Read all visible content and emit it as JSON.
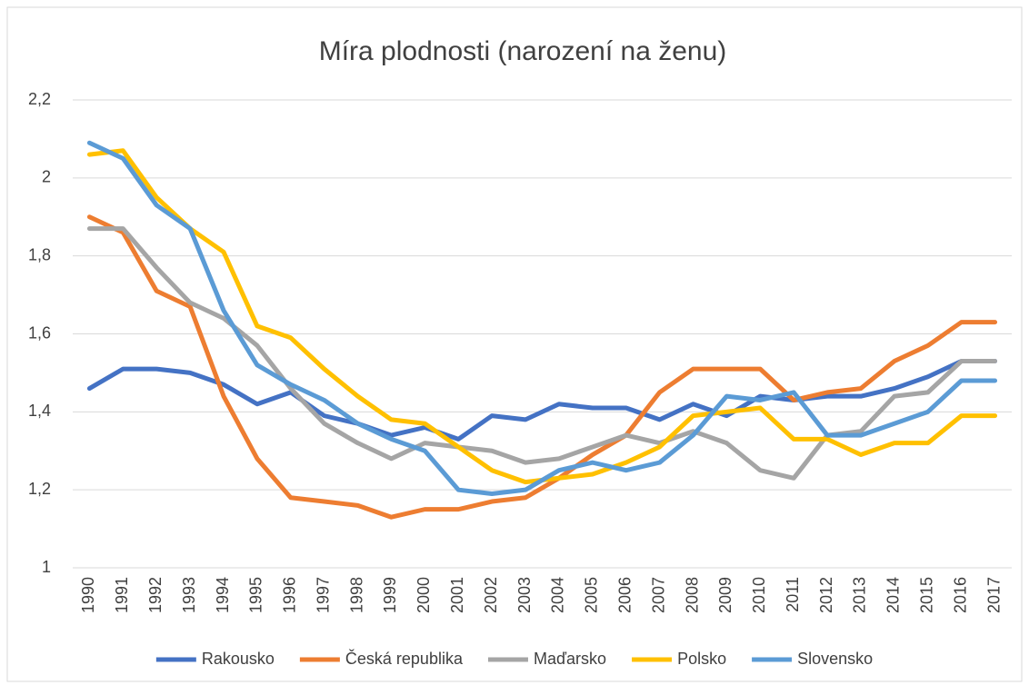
{
  "chart_data": {
    "type": "line",
    "title": "Míra plodnosti (narození na ženu)",
    "categories": [
      "1990",
      "1991",
      "1992",
      "1993",
      "1994",
      "1995",
      "1996",
      "1997",
      "1998",
      "1999",
      "2000",
      "2001",
      "2002",
      "2003",
      "2004",
      "2005",
      "2006",
      "2007",
      "2008",
      "2009",
      "2010",
      "2011",
      "2012",
      "2013",
      "2014",
      "2015",
      "2016",
      "2017"
    ],
    "series": [
      {
        "name": "Rakousko",
        "color": "#4472c4",
        "values": [
          1.46,
          1.51,
          1.51,
          1.5,
          1.47,
          1.42,
          1.45,
          1.39,
          1.37,
          1.34,
          1.36,
          1.33,
          1.39,
          1.38,
          1.42,
          1.41,
          1.41,
          1.38,
          1.42,
          1.39,
          1.44,
          1.43,
          1.44,
          1.44,
          1.46,
          1.49,
          1.53,
          1.53
        ]
      },
      {
        "name": "Česká republika",
        "color": "#ed7d31",
        "values": [
          1.9,
          1.86,
          1.71,
          1.67,
          1.44,
          1.28,
          1.18,
          1.17,
          1.16,
          1.13,
          1.15,
          1.15,
          1.17,
          1.18,
          1.23,
          1.29,
          1.34,
          1.45,
          1.51,
          1.51,
          1.51,
          1.43,
          1.45,
          1.46,
          1.53,
          1.57,
          1.63,
          1.63
        ]
      },
      {
        "name": "Maďarsko",
        "color": "#a5a5a5",
        "values": [
          1.87,
          1.87,
          1.77,
          1.68,
          1.64,
          1.57,
          1.46,
          1.37,
          1.32,
          1.28,
          1.32,
          1.31,
          1.3,
          1.27,
          1.28,
          1.31,
          1.34,
          1.32,
          1.35,
          1.32,
          1.25,
          1.23,
          1.34,
          1.35,
          1.44,
          1.45,
          1.53,
          1.53
        ]
      },
      {
        "name": "Polsko",
        "color": "#ffc000",
        "values": [
          2.06,
          2.07,
          1.95,
          1.87,
          1.81,
          1.62,
          1.59,
          1.51,
          1.44,
          1.38,
          1.37,
          1.31,
          1.25,
          1.22,
          1.23,
          1.24,
          1.27,
          1.31,
          1.39,
          1.4,
          1.41,
          1.33,
          1.33,
          1.29,
          1.32,
          1.32,
          1.39,
          1.39
        ]
      },
      {
        "name": "Slovensko",
        "color": "#5b9bd5",
        "values": [
          2.09,
          2.05,
          1.93,
          1.87,
          1.66,
          1.52,
          1.47,
          1.43,
          1.37,
          1.33,
          1.3,
          1.2,
          1.19,
          1.2,
          1.25,
          1.27,
          1.25,
          1.27,
          1.34,
          1.44,
          1.43,
          1.45,
          1.34,
          1.34,
          1.37,
          1.4,
          1.48,
          1.48
        ]
      }
    ],
    "ylim": [
      1,
      2.2
    ],
    "yticks": [
      1,
      {
        "value": 1.2,
        "label": "1,2"
      },
      {
        "value": 1.4,
        "label": "1,4"
      },
      {
        "value": 1.6,
        "label": "1,6"
      },
      {
        "value": 1.8,
        "label": "1,8"
      },
      2,
      {
        "value": 2.2,
        "label": "2,2"
      }
    ],
    "grid": true,
    "legend": "bottom"
  }
}
